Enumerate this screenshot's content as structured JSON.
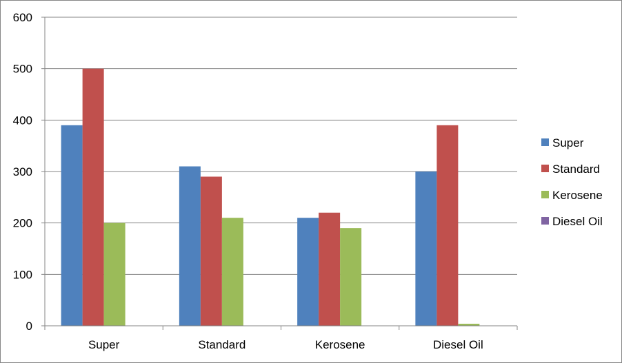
{
  "chart_data": {
    "type": "bar",
    "title": "",
    "xlabel": "",
    "ylabel": "",
    "categories": [
      "Super",
      "Standard",
      "Kerosene",
      "Diesel Oil"
    ],
    "ylim": [
      0,
      600
    ],
    "yticks": [
      0,
      100,
      200,
      300,
      400,
      500,
      600
    ],
    "ytick_labels": [
      "0",
      "100",
      "200",
      "300",
      "400",
      "500",
      "600"
    ],
    "grid": true,
    "legend_position": "right",
    "series": [
      {
        "name": "Super",
        "color": "#4F81BD",
        "values": [
          390,
          310,
          210,
          300
        ]
      },
      {
        "name": "Standard",
        "color": "#C0504D",
        "values": [
          500,
          290,
          220,
          390
        ]
      },
      {
        "name": "Kerosene",
        "color": "#9BBB59",
        "values": [
          200,
          210,
          190,
          4
        ]
      },
      {
        "name": "Diesel Oil",
        "color": "#8064A2",
        "values": [
          0,
          0,
          0,
          0
        ]
      }
    ]
  }
}
